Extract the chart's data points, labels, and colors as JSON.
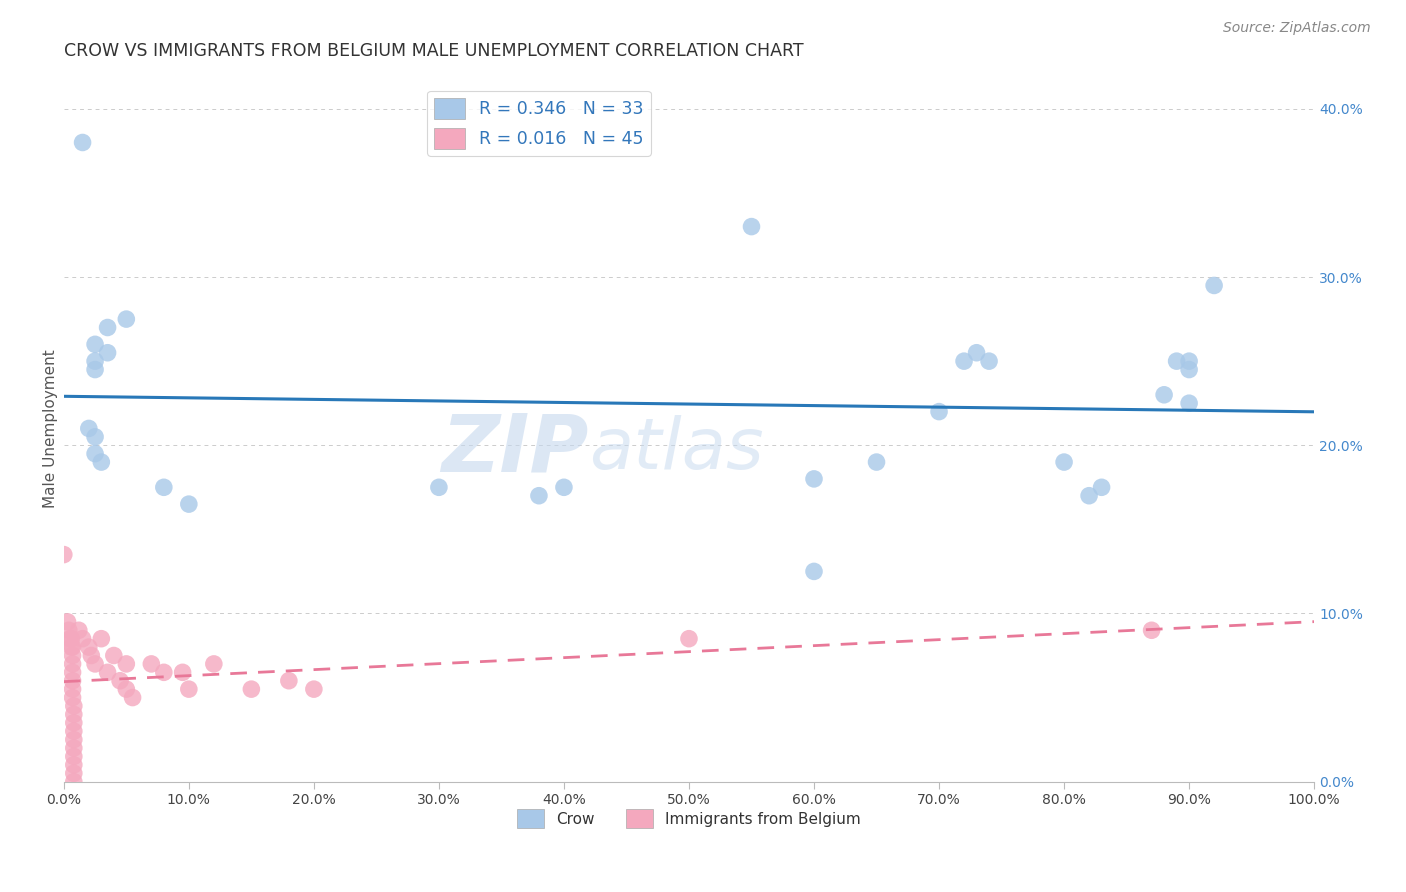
{
  "title": "CROW VS IMMIGRANTS FROM BELGIUM MALE UNEMPLOYMENT CORRELATION CHART",
  "source": "Source: ZipAtlas.com",
  "ylabel": "Male Unemployment",
  "legend_labels": [
    "Crow",
    "Immigrants from Belgium"
  ],
  "legend_R": [
    "R = 0.346",
    "N = 33"
  ],
  "legend_R2": [
    "R = 0.016",
    "N = 45"
  ],
  "blue_color": "#a8c8e8",
  "pink_color": "#f4a8be",
  "blue_line_color": "#2878b8",
  "pink_line_color": "#e87898",
  "crow_points": [
    [
      1.5,
      38.0
    ],
    [
      3.5,
      27.0
    ],
    [
      5.0,
      27.5
    ],
    [
      2.5,
      26.0
    ],
    [
      2.5,
      25.0
    ],
    [
      2.5,
      24.5
    ],
    [
      2.0,
      21.0
    ],
    [
      2.5,
      20.5
    ],
    [
      2.5,
      19.5
    ],
    [
      3.0,
      19.0
    ],
    [
      3.5,
      25.5
    ],
    [
      8.0,
      17.5
    ],
    [
      10.0,
      16.5
    ],
    [
      30.0,
      17.5
    ],
    [
      38.0,
      17.0
    ],
    [
      40.0,
      17.5
    ],
    [
      55.0,
      33.0
    ],
    [
      60.0,
      18.0
    ],
    [
      60.0,
      12.5
    ],
    [
      65.0,
      19.0
    ],
    [
      70.0,
      22.0
    ],
    [
      72.0,
      25.0
    ],
    [
      73.0,
      25.5
    ],
    [
      74.0,
      25.0
    ],
    [
      80.0,
      19.0
    ],
    [
      82.0,
      17.0
    ],
    [
      83.0,
      17.5
    ],
    [
      88.0,
      23.0
    ],
    [
      89.0,
      25.0
    ],
    [
      90.0,
      25.0
    ],
    [
      90.0,
      24.5
    ],
    [
      90.0,
      22.5
    ],
    [
      92.0,
      29.5
    ]
  ],
  "belgium_points": [
    [
      0.0,
      13.5
    ],
    [
      0.3,
      9.5
    ],
    [
      0.4,
      9.0
    ],
    [
      0.5,
      8.5
    ],
    [
      0.6,
      8.5
    ],
    [
      0.6,
      8.0
    ],
    [
      0.7,
      8.0
    ],
    [
      0.7,
      7.5
    ],
    [
      0.7,
      7.0
    ],
    [
      0.7,
      6.5
    ],
    [
      0.7,
      6.0
    ],
    [
      0.7,
      5.5
    ],
    [
      0.7,
      5.0
    ],
    [
      0.8,
      4.5
    ],
    [
      0.8,
      4.0
    ],
    [
      0.8,
      3.5
    ],
    [
      0.8,
      3.0
    ],
    [
      0.8,
      2.5
    ],
    [
      0.8,
      2.0
    ],
    [
      0.8,
      1.5
    ],
    [
      0.8,
      1.0
    ],
    [
      0.8,
      0.5
    ],
    [
      0.8,
      0.0
    ],
    [
      1.2,
      9.0
    ],
    [
      1.5,
      8.5
    ],
    [
      2.0,
      8.0
    ],
    [
      2.2,
      7.5
    ],
    [
      2.5,
      7.0
    ],
    [
      3.0,
      8.5
    ],
    [
      3.5,
      6.5
    ],
    [
      4.0,
      7.5
    ],
    [
      4.5,
      6.0
    ],
    [
      5.0,
      5.5
    ],
    [
      5.0,
      7.0
    ],
    [
      7.0,
      7.0
    ],
    [
      8.0,
      6.5
    ],
    [
      9.5,
      6.5
    ],
    [
      10.0,
      5.5
    ],
    [
      12.0,
      7.0
    ],
    [
      15.0,
      5.5
    ],
    [
      18.0,
      6.0
    ],
    [
      20.0,
      5.5
    ],
    [
      50.0,
      8.5
    ],
    [
      87.0,
      9.0
    ],
    [
      5.5,
      5.0
    ]
  ],
  "xlim": [
    0,
    100
  ],
  "ylim": [
    0,
    42
  ],
  "x_ticks": [
    0,
    10,
    20,
    30,
    40,
    50,
    60,
    70,
    80,
    90,
    100
  ],
  "y_ticks": [
    0,
    10,
    20,
    30,
    40
  ],
  "grid_color": "#cccccc",
  "background_color": "#ffffff",
  "watermark": "ZIPatlas"
}
